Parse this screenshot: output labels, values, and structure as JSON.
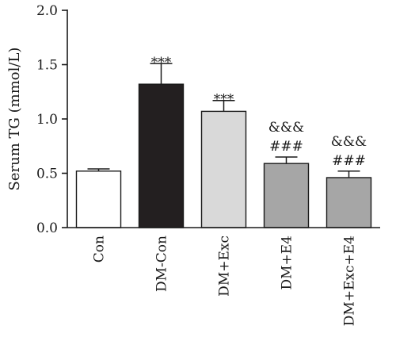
{
  "chart_data": {
    "type": "bar",
    "ylabel": "Serum TG (mmol/L)",
    "ylim": [
      0,
      2.0
    ],
    "yticks": [
      "0.0",
      "0.5",
      "1.0",
      "1.5",
      "2.0"
    ],
    "grid": false,
    "categories": [
      "Con",
      "DM-Con",
      "DM+Exc",
      "DM+E4",
      "DM+Exc+E4"
    ],
    "values": [
      0.52,
      1.32,
      1.07,
      0.59,
      0.46
    ],
    "errors": [
      0.02,
      0.19,
      0.1,
      0.06,
      0.06
    ],
    "significance": [
      [],
      [
        "***"
      ],
      [
        "***"
      ],
      [
        "&&&",
        "###"
      ],
      [
        "&&&",
        "###"
      ]
    ],
    "colors": [
      "#ffffff",
      "#231f20",
      "#d9d9d9",
      "#a6a6a6",
      "#a6a6a6"
    ]
  }
}
